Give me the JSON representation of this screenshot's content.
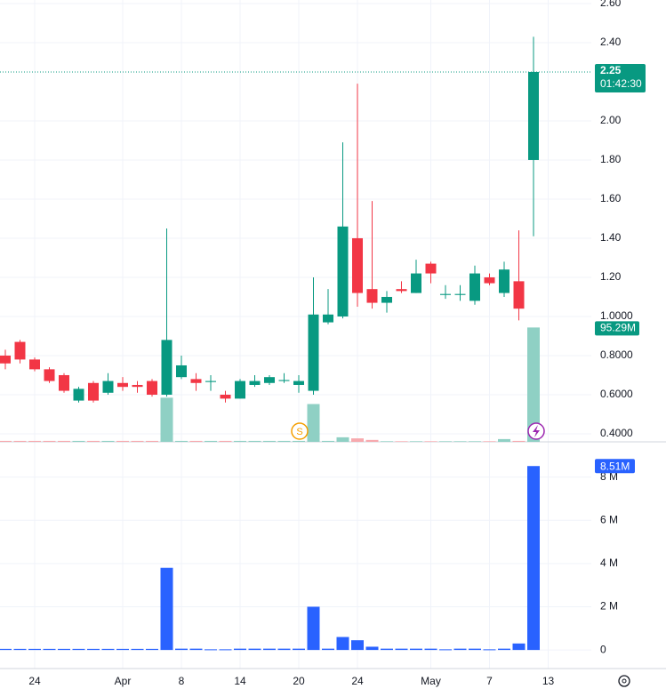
{
  "chart_data": [
    {
      "type": "candlestick",
      "categories": [
        null,
        null,
        "24",
        null,
        null,
        null,
        null,
        null,
        "Apr",
        null,
        null,
        null,
        "8",
        null,
        null,
        null,
        "14",
        null,
        null,
        null,
        "20",
        null,
        null,
        null,
        "24",
        null,
        null,
        null,
        null,
        "May",
        null,
        null,
        null,
        "7",
        null,
        null,
        null,
        "13"
      ],
      "open": [
        0.8,
        0.87,
        0.78,
        0.73,
        0.7,
        0.57,
        0.66,
        0.61,
        0.66,
        0.65,
        0.67,
        0.6,
        0.69,
        0.68,
        0.665,
        0.6,
        0.58,
        0.65,
        0.66,
        0.67,
        0.65,
        0.62,
        0.97,
        1.0,
        1.4,
        1.14,
        1.07,
        1.14,
        1.12,
        1.27,
        1.11,
        1.11,
        1.08,
        1.2,
        1.12,
        1.18,
        1.8,
        null
      ],
      "high": [
        0.83,
        0.88,
        0.79,
        0.74,
        0.71,
        0.64,
        0.67,
        0.71,
        0.69,
        0.67,
        0.68,
        1.45,
        0.8,
        0.71,
        0.7,
        0.62,
        0.68,
        0.7,
        0.7,
        0.71,
        0.7,
        1.2,
        1.14,
        1.89,
        2.19,
        1.59,
        1.13,
        1.18,
        1.29,
        1.28,
        1.16,
        1.16,
        1.26,
        1.22,
        1.28,
        1.44,
        2.43,
        null
      ],
      "low": [
        0.73,
        0.76,
        0.72,
        0.66,
        0.61,
        0.56,
        0.56,
        0.6,
        0.62,
        0.61,
        0.59,
        0.59,
        0.68,
        0.62,
        0.62,
        0.56,
        0.58,
        0.64,
        0.65,
        0.66,
        0.61,
        0.6,
        0.96,
        0.99,
        1.05,
        1.04,
        1.02,
        1.12,
        1.12,
        1.17,
        1.09,
        1.08,
        1.06,
        1.16,
        1.1,
        0.98,
        1.41,
        null
      ],
      "close": [
        0.76,
        0.78,
        0.73,
        0.67,
        0.62,
        0.63,
        0.57,
        0.67,
        0.64,
        0.64,
        0.6,
        0.88,
        0.75,
        0.66,
        0.67,
        0.58,
        0.67,
        0.67,
        0.69,
        0.675,
        0.67,
        1.01,
        1.01,
        1.46,
        1.12,
        1.07,
        1.1,
        1.13,
        1.22,
        1.22,
        1.115,
        1.115,
        1.22,
        1.17,
        1.24,
        1.04,
        2.25,
        null
      ],
      "up_color": "#089981",
      "down_color": "#f23645",
      "ylim": [
        0.359,
        2.618
      ],
      "yticks": [
        {
          "value": 2.6,
          "label": "2.60"
        },
        {
          "value": 2.4,
          "label": "2.40"
        },
        {
          "value": 2.0,
          "label": "2.00"
        },
        {
          "value": 1.8,
          "label": "1.80"
        },
        {
          "value": 1.6,
          "label": "1.60"
        },
        {
          "value": 1.4,
          "label": "1.40"
        },
        {
          "value": 1.2,
          "label": "1.20"
        },
        {
          "value": 1.0,
          "label": "1.0000"
        },
        {
          "value": 0.8,
          "label": "0.8000"
        },
        {
          "value": 0.6,
          "label": "0.6000"
        },
        {
          "value": 0.4,
          "label": "0.4000"
        }
      ],
      "grid": true,
      "last_price": 2.25,
      "countdown": "01:42:30",
      "overlay_volume": [
        0.8,
        0.8,
        0.8,
        0.8,
        0.8,
        0.8,
        0.8,
        0.8,
        0.8,
        0.8,
        0.8,
        36.8,
        0.8,
        0.8,
        0.8,
        0.8,
        0.8,
        0.8,
        0.8,
        0.8,
        0.8,
        31.5,
        0.8,
        3.8,
        2.9,
        1.6,
        0.5,
        0.5,
        0.5,
        0.5,
        0.5,
        0.5,
        0.5,
        0.5,
        2.3,
        0.8,
        95.29,
        null
      ],
      "overlay_last_label": "95.29M",
      "overlay_max": 100,
      "events": [
        {
          "index": 20,
          "label": "S"
        }
      ]
    },
    {
      "type": "bar",
      "color": "#2962ff",
      "values": [
        0.05,
        0.05,
        0.05,
        0.05,
        0.05,
        0.05,
        0.05,
        0.05,
        0.05,
        0.05,
        0.05,
        3.8,
        0.06,
        0.06,
        0.03,
        0.03,
        0.06,
        0.06,
        0.06,
        0.06,
        0.06,
        2.0,
        0.06,
        0.6,
        0.45,
        0.15,
        0.06,
        0.06,
        0.06,
        0.06,
        0.03,
        0.06,
        0.06,
        0.03,
        0.06,
        0.3,
        8.51,
        null
      ],
      "last_label": "8.51M",
      "ylim": [
        -0.86,
        9.63
      ],
      "yticks": [
        {
          "value": 8,
          "label": "8 M"
        },
        {
          "value": 6,
          "label": "6 M"
        },
        {
          "value": 4,
          "label": "4 M"
        },
        {
          "value": 2,
          "label": "2 M"
        },
        0
      ],
      "grid": true
    }
  ]
}
